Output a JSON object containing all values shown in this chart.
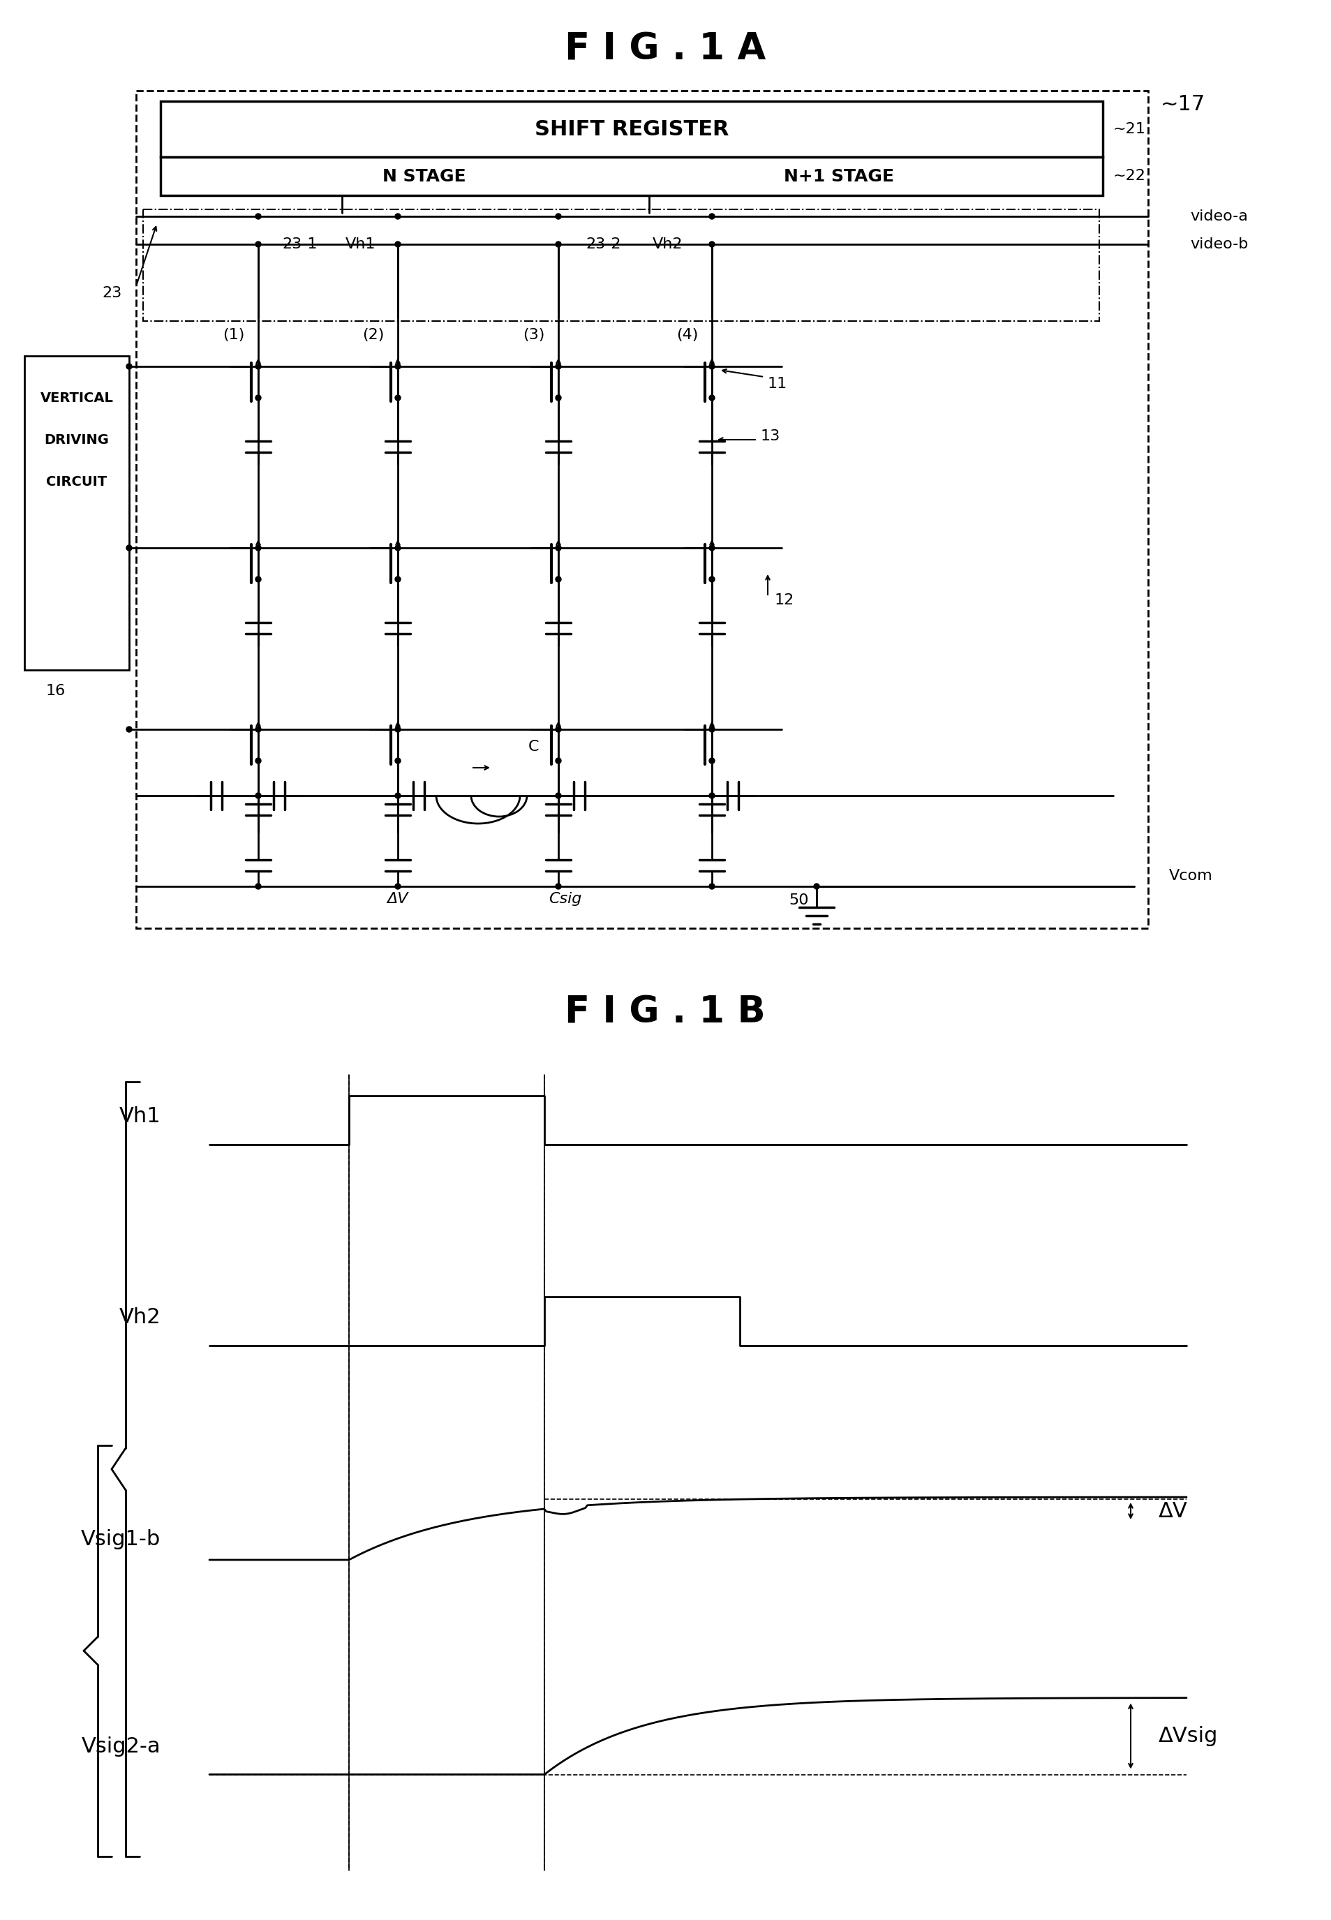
{
  "fig_title_a": "F I G . 1 A",
  "fig_title_b": "F I G . 1 B",
  "bg_color": "#ffffff",
  "line_color": "#000000",
  "labels": {
    "shift_register": "SHIFT REGISTER",
    "n_stage": "N STAGE",
    "n1_stage": "N+1 STAGE",
    "ref17": "~17",
    "ref21": "~21",
    "ref22": "~22",
    "ref23": "23",
    "ref23_1": "23-1",
    "ref23_2": "23-2",
    "ref11": "11",
    "ref12": "12",
    "ref13": "13",
    "ref16": "16",
    "ref50": "50",
    "vh1": "Vh1",
    "vh2": "Vh2",
    "video_a": "video-a",
    "video_b": "video-b",
    "dv": "ΔV",
    "csig": "Csig",
    "vcom": "Vcom",
    "col1": "(1)",
    "col2": "(2)",
    "col3": "(3)",
    "col4": "(4)",
    "C": "C",
    "vsig1b": "Vsig1-b",
    "vsig2a": "Vsig2-a",
    "vh1_label": "Vh1",
    "vh2_label": "Vh2",
    "dv_label": "ΔV",
    "dvsig_label": "ΔVsig"
  }
}
